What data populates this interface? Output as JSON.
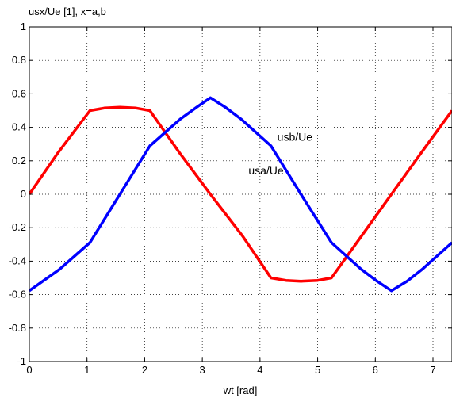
{
  "chart_data": {
    "type": "line",
    "title": "usx/Ue [1], x=a,b",
    "xlabel": "wt [rad]",
    "ylabel": "",
    "xlim": [
      0,
      7.33
    ],
    "ylim": [
      -1,
      1
    ],
    "xticks": [
      0,
      1,
      2,
      3,
      4,
      5,
      6,
      7
    ],
    "yticks": [
      -1,
      -0.8,
      -0.6,
      -0.4,
      -0.2,
      0,
      0.2,
      0.4,
      0.6,
      0.8,
      1
    ],
    "xtick_labels": [
      "0",
      "1",
      "2",
      "3",
      "4",
      "5",
      "6",
      "7"
    ],
    "ytick_labels": [
      "-1",
      "-0.8",
      "-0.6",
      "-0.4",
      "-0.2",
      "0",
      "0.2",
      "0.4",
      "0.6",
      "0.8",
      "1"
    ],
    "grid": true,
    "series": [
      {
        "name": "usa/Ue",
        "color": "#ff0000",
        "x": [
          0,
          0.5,
          1.05,
          1.3,
          1.57,
          1.85,
          2.09,
          2.6,
          3.14,
          3.7,
          4.19,
          4.45,
          4.71,
          5.0,
          5.24,
          5.76,
          6.28,
          6.8,
          7.33
        ],
        "y": [
          0,
          0.25,
          0.5,
          0.515,
          0.52,
          0.515,
          0.5,
          0.25,
          0,
          -0.25,
          -0.5,
          -0.515,
          -0.52,
          -0.515,
          -0.5,
          -0.25,
          0,
          0.25,
          0.5
        ]
      },
      {
        "name": "usb/Ue",
        "color": "#0000ff",
        "x": [
          0,
          0.52,
          1.05,
          1.57,
          2.09,
          2.62,
          2.9,
          3.14,
          3.4,
          3.67,
          4.19,
          4.71,
          5.24,
          5.76,
          6.03,
          6.28,
          6.55,
          6.81,
          7.33
        ],
        "y": [
          -0.577,
          -0.45,
          -0.289,
          0,
          0.289,
          0.45,
          0.52,
          0.577,
          0.52,
          0.45,
          0.289,
          0,
          -0.289,
          -0.45,
          -0.52,
          -0.577,
          -0.52,
          -0.45,
          -0.289
        ]
      }
    ],
    "annotations": [
      {
        "text": "usb/Ue",
        "x": 4.3,
        "y": 0.3
      },
      {
        "text": "usa/Ue",
        "x": 3.8,
        "y": 0.1
      }
    ]
  }
}
